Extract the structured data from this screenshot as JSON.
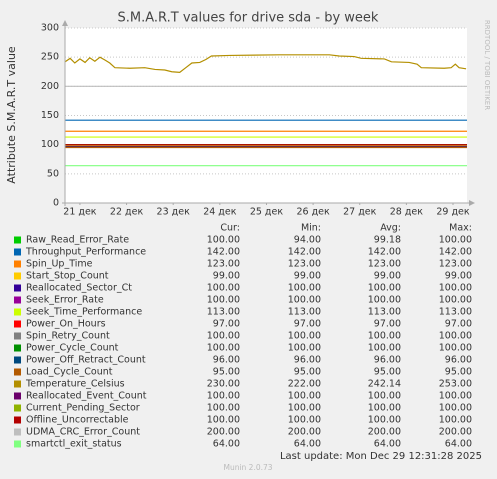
{
  "chart_data": {
    "type": "line",
    "title": "S.M.A.R.T values for drive sda - by week",
    "y_label": "Attribute S.M.A.R.T value",
    "watermark": "RRDTOOL / TOBI OETIKER",
    "columns": [
      "Cur:",
      "Min:",
      "Avg:",
      "Max:"
    ],
    "last_update": "Last update: Mon Dec 29 12:31:28 2025",
    "footer": "Munin 2.0.73",
    "grid": true,
    "xlim": [
      20.68,
      29.3
    ],
    "xticks": [
      {
        "value": 21,
        "label": "21 дек"
      },
      {
        "value": 22,
        "label": "22 дек"
      },
      {
        "value": 23,
        "label": "23 дек"
      },
      {
        "value": 24,
        "label": "24 дек"
      },
      {
        "value": 25,
        "label": "25 дек"
      },
      {
        "value": 26,
        "label": "26 дек"
      },
      {
        "value": 27,
        "label": "27 дек"
      },
      {
        "value": 28,
        "label": "28 дек"
      },
      {
        "value": 29,
        "label": "29 дек"
      }
    ],
    "ylim": [
      0,
      300
    ],
    "yticks": [
      0,
      50,
      100,
      150,
      200,
      250,
      300
    ],
    "series": [
      {
        "name": "Raw_Read_Error_Rate",
        "color": "#00CC00",
        "x": [
          20.68,
          29.3
        ],
        "values": [
          100,
          100
        ],
        "cur": "100.00",
        "min": "94.00",
        "avg": "99.18",
        "max": "100.00"
      },
      {
        "name": "Throughput_Performance",
        "color": "#0066B3",
        "x": [
          20.68,
          29.3
        ],
        "values": [
          142,
          142
        ],
        "cur": "142.00",
        "min": "142.00",
        "avg": "142.00",
        "max": "142.00"
      },
      {
        "name": "Spin_Up_Time",
        "color": "#FF8000",
        "x": [
          20.68,
          29.3
        ],
        "values": [
          123,
          123
        ],
        "cur": "123.00",
        "min": "123.00",
        "avg": "123.00",
        "max": "123.00"
      },
      {
        "name": "Start_Stop_Count",
        "color": "#FFCC00",
        "x": [
          20.68,
          29.3
        ],
        "values": [
          99,
          99
        ],
        "cur": "99.00",
        "min": "99.00",
        "avg": "99.00",
        "max": "99.00"
      },
      {
        "name": "Reallocated_Sector_Ct",
        "color": "#330099",
        "x": [
          20.68,
          29.3
        ],
        "values": [
          100,
          100
        ],
        "cur": "100.00",
        "min": "100.00",
        "avg": "100.00",
        "max": "100.00"
      },
      {
        "name": "Seek_Error_Rate",
        "color": "#990099",
        "x": [
          20.68,
          29.3
        ],
        "values": [
          100,
          100
        ],
        "cur": "100.00",
        "min": "100.00",
        "avg": "100.00",
        "max": "100.00"
      },
      {
        "name": "Seek_Time_Performance",
        "color": "#CCFF00",
        "x": [
          20.68,
          29.3
        ],
        "values": [
          113,
          113
        ],
        "cur": "113.00",
        "min": "113.00",
        "avg": "113.00",
        "max": "113.00"
      },
      {
        "name": "Power_On_Hours",
        "color": "#FF0000",
        "x": [
          20.68,
          29.3
        ],
        "values": [
          97,
          97
        ],
        "cur": "97.00",
        "min": "97.00",
        "avg": "97.00",
        "max": "97.00"
      },
      {
        "name": "Spin_Retry_Count",
        "color": "#808080",
        "x": [
          20.68,
          29.3
        ],
        "values": [
          100,
          100
        ],
        "cur": "100.00",
        "min": "100.00",
        "avg": "100.00",
        "max": "100.00"
      },
      {
        "name": "Power_Cycle_Count",
        "color": "#008F00",
        "x": [
          20.68,
          29.3
        ],
        "values": [
          100,
          100
        ],
        "cur": "100.00",
        "min": "100.00",
        "avg": "100.00",
        "max": "100.00"
      },
      {
        "name": "Power_Off_Retract_Count",
        "color": "#00487D",
        "x": [
          20.68,
          29.3
        ],
        "values": [
          96,
          96
        ],
        "cur": "96.00",
        "min": "96.00",
        "avg": "96.00",
        "max": "96.00"
      },
      {
        "name": "Load_Cycle_Count",
        "color": "#B35A00",
        "x": [
          20.68,
          29.3
        ],
        "values": [
          95,
          95
        ],
        "cur": "95.00",
        "min": "95.00",
        "avg": "95.00",
        "max": "95.00"
      },
      {
        "name": "Temperature_Celsius",
        "color": "#B38F00",
        "x": [
          20.68,
          20.79,
          20.89,
          21.0,
          21.11,
          21.21,
          21.32,
          21.43,
          21.54,
          21.64,
          21.75,
          22.07,
          22.39,
          22.61,
          22.82,
          22.97,
          23.14,
          23.27,
          23.4,
          23.57,
          23.7,
          23.82,
          24.21,
          25.28,
          26.35,
          26.56,
          26.88,
          27.03,
          27.53,
          27.68,
          28.06,
          28.23,
          28.32,
          28.81,
          28.96,
          29.05,
          29.13,
          29.28
        ],
        "values": [
          242,
          248,
          240,
          247,
          241,
          249,
          243,
          250,
          245,
          240,
          232,
          231,
          232,
          229,
          228,
          225,
          224,
          232,
          240,
          241,
          246,
          252,
          253,
          254,
          254,
          252,
          251,
          248,
          247,
          242,
          241,
          238,
          232,
          231,
          232,
          238,
          232,
          230
        ],
        "cur": "230.00",
        "min": "222.00",
        "avg": "242.14",
        "max": "253.00"
      },
      {
        "name": "Reallocated_Event_Count",
        "color": "#6B006B",
        "x": [
          20.68,
          29.3
        ],
        "values": [
          100,
          100
        ],
        "cur": "100.00",
        "min": "100.00",
        "avg": "100.00",
        "max": "100.00"
      },
      {
        "name": "Current_Pending_Sector",
        "color": "#8FB300",
        "x": [
          20.68,
          29.3
        ],
        "values": [
          100,
          100
        ],
        "cur": "100.00",
        "min": "100.00",
        "avg": "100.00",
        "max": "100.00"
      },
      {
        "name": "Offline_Uncorrectable",
        "color": "#B30000",
        "x": [
          20.68,
          29.3
        ],
        "values": [
          100,
          100
        ],
        "cur": "100.00",
        "min": "100.00",
        "avg": "100.00",
        "max": "100.00"
      },
      {
        "name": "UDMA_CRC_Error_Count",
        "color": "#BEBEBE",
        "x": [
          20.68,
          29.3
        ],
        "values": [
          200,
          200
        ],
        "cur": "200.00",
        "min": "200.00",
        "avg": "200.00",
        "max": "200.00"
      },
      {
        "name": "smartctl_exit_status",
        "color": "#80FF80",
        "x": [
          20.68,
          29.3
        ],
        "values": [
          64,
          64
        ],
        "cur": "64.00",
        "min": "64.00",
        "avg": "64.00",
        "max": "64.00"
      }
    ]
  }
}
